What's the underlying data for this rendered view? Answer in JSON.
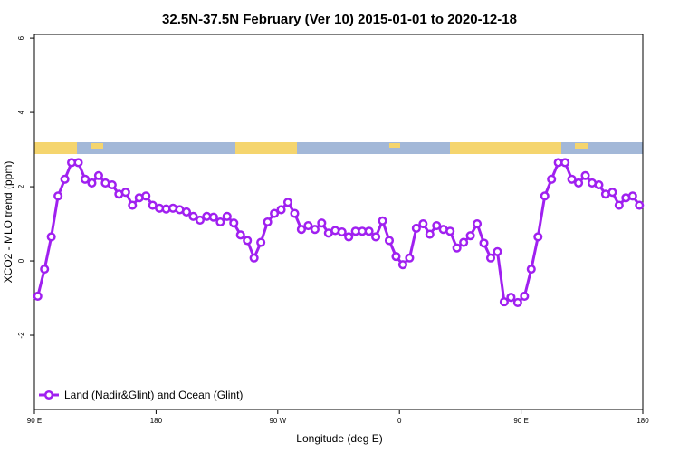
{
  "chart_data": {
    "type": "line",
    "title": "32.5N-37.5N February (Ver 10)   2015-01-01 to 2020-12-18",
    "x_label": "Longitude (deg E)",
    "y_label": "XCO2 - MLO trend (ppm)",
    "x": [
      92.5,
      97.5,
      102.5,
      107.5,
      112.5,
      117.5,
      122.5,
      127.5,
      132.5,
      137.5,
      142.5,
      147.5,
      152.5,
      157.5,
      162.5,
      167.5,
      172.5,
      177.5,
      182.5,
      187.5,
      192.5,
      197.5,
      202.5,
      207.5,
      212.5,
      217.5,
      222.5,
      227.5,
      232.5,
      237.5,
      242.5,
      247.5,
      252.5,
      257.5,
      262.5,
      267.5,
      272.5,
      277.5,
      282.5,
      287.5,
      292.5,
      297.5,
      302.5,
      307.5,
      312.5,
      317.5,
      322.5,
      327.5,
      332.5,
      337.5,
      342.5,
      347.5,
      352.5,
      357.5,
      362.5,
      367.5,
      372.5,
      377.5,
      382.5,
      387.5,
      392.5,
      397.5,
      402.5,
      407.5,
      412.5,
      417.5,
      422.5,
      427.5,
      432.5,
      437.5,
      442.5,
      447.5,
      452.5,
      457.5,
      462.5,
      467.5,
      472.5,
      477.5,
      482.5,
      487.5,
      492.5,
      497.5,
      502.5,
      507.5,
      512.5,
      517.5,
      522.5,
      527.5,
      532.5,
      537.5
    ],
    "series": [
      {
        "name": "Land (Nadir&Glint) and Ocean (Glint)",
        "color": "#a020f0",
        "values": [
          -0.95,
          -0.22,
          0.65,
          1.75,
          2.2,
          2.65,
          2.65,
          2.2,
          2.1,
          2.3,
          2.1,
          2.05,
          1.8,
          1.85,
          1.5,
          1.7,
          1.75,
          1.5,
          1.42,
          1.4,
          1.42,
          1.38,
          1.32,
          1.2,
          1.1,
          1.2,
          1.18,
          1.05,
          1.2,
          1.02,
          0.7,
          0.55,
          0.08,
          0.5,
          1.05,
          1.28,
          1.38,
          1.58,
          1.28,
          0.85,
          0.95,
          0.85,
          1.02,
          0.75,
          0.82,
          0.78,
          0.65,
          0.8,
          0.8,
          0.8,
          0.65,
          1.08,
          0.55,
          0.12,
          -0.1,
          0.08,
          0.88,
          1.0,
          0.72,
          0.95,
          0.85,
          0.8,
          0.35,
          0.5,
          0.68,
          1.0,
          0.48,
          0.08,
          0.25,
          -1.1,
          -0.98,
          -1.12,
          -0.95,
          -0.22,
          0.65,
          1.75,
          2.2,
          2.65,
          2.65,
          2.2,
          2.1,
          2.3,
          2.1,
          2.05,
          1.8,
          1.85,
          1.5,
          1.7,
          1.75,
          1.5
        ]
      }
    ],
    "xlim": [
      90,
      540
    ],
    "xticks": [
      {
        "value": 90,
        "label": "90 E"
      },
      {
        "value": 180,
        "label": "180"
      },
      {
        "value": 270,
        "label": "90 W"
      },
      {
        "value": 360,
        "label": "0"
      },
      {
        "value": 450,
        "label": "90 E"
      },
      {
        "value": 540,
        "label": "180"
      }
    ],
    "ylim": [
      -4,
      6.1
    ],
    "yticks": [
      -2,
      0,
      2,
      4,
      6
    ],
    "legend": "bottom-left",
    "grid": false
  }
}
